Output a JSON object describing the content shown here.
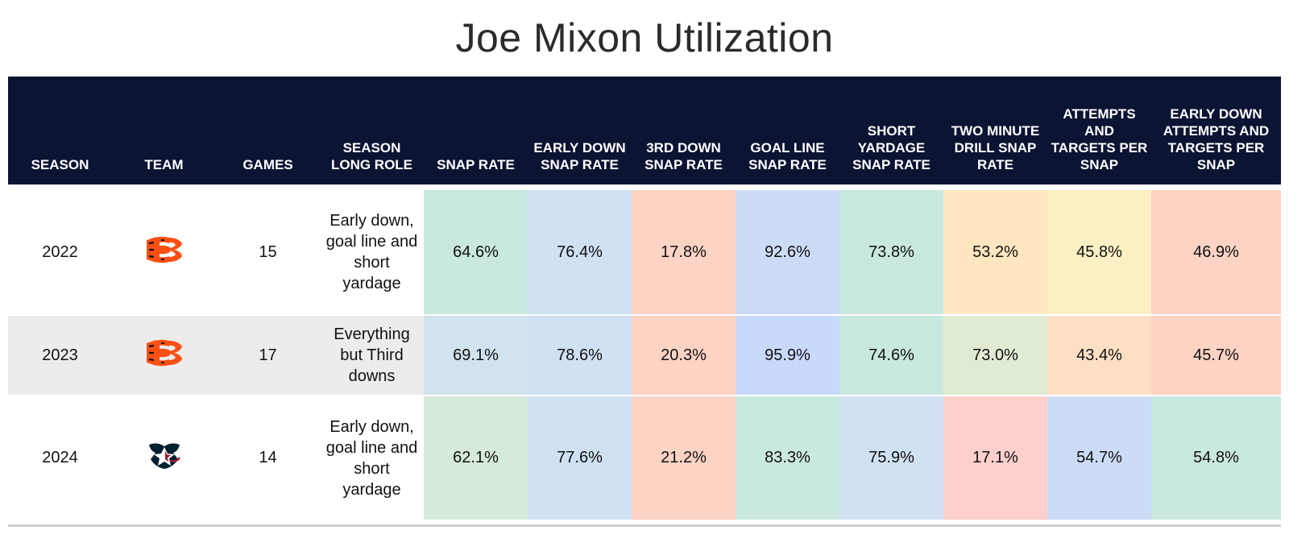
{
  "title": "Joe Mixon Utilization",
  "chart_data": {
    "type": "table",
    "title": "Joe Mixon Utilization",
    "columns": [
      "SEASON",
      "TEAM",
      "GAMES",
      "SEASON LONG ROLE",
      "SNAP RATE",
      "EARLY DOWN SNAP RATE",
      "3RD DOWN SNAP RATE",
      "GOAL LINE SNAP RATE",
      "SHORT YARDAGE SNAP RATE",
      "TWO MINUTE DRILL SNAP RATE",
      "ATTEMPTS AND TARGETS PER SNAP",
      "EARLY DOWN ATTEMPTS AND TARGETS PER SNAP"
    ],
    "rows": [
      {
        "season": "2022",
        "team_logo": "bengals-logo-icon",
        "games": "15",
        "role": "Early down, goal line and short yardage",
        "snap_rate": "64.6%",
        "early_down_snap_rate": "76.4%",
        "third_down_snap_rate": "17.8%",
        "goal_line_snap_rate": "92.6%",
        "short_yardage_snap_rate": "73.8%",
        "two_minute_drill_snap_rate": "53.2%",
        "attempts_targets_per_snap": "45.8%",
        "early_down_attempts_targets_per_snap": "46.9%"
      },
      {
        "season": "2023",
        "team_logo": "bengals-logo-icon",
        "games": "17",
        "role": "Everything but Third downs",
        "snap_rate": "69.1%",
        "early_down_snap_rate": "78.6%",
        "third_down_snap_rate": "20.3%",
        "goal_line_snap_rate": "95.9%",
        "short_yardage_snap_rate": "74.6%",
        "two_minute_drill_snap_rate": "73.0%",
        "attempts_targets_per_snap": "43.4%",
        "early_down_attempts_targets_per_snap": "45.7%"
      },
      {
        "season": "2024",
        "team_logo": "texans-logo-icon",
        "games": "14",
        "role": "Early down, goal line and short yardage",
        "snap_rate": "62.1%",
        "early_down_snap_rate": "77.6%",
        "third_down_snap_rate": "21.2%",
        "goal_line_snap_rate": "83.3%",
        "short_yardage_snap_rate": "75.9%",
        "two_minute_drill_snap_rate": "17.1%",
        "attempts_targets_per_snap": "54.7%",
        "early_down_attempts_targets_per_snap": "54.8%"
      }
    ],
    "cell_colors": [
      [
        "#c9e8df",
        "#cfe1f2",
        "#fdd3c4",
        "#ccdcf7",
        "#c9e8df",
        "#fde6c0",
        "#fbefc3",
        "#fdd3c4"
      ],
      [
        "#d0e3ee",
        "#cfe1f2",
        "#fdd3c4",
        "#c8d9fb",
        "#c9e8df",
        "#e0ebd3",
        "#fde0c4",
        "#fdd3c4"
      ],
      [
        "#d6eada",
        "#cfe1f2",
        "#fdd3c4",
        "#c9e8df",
        "#cfe1f2",
        "#fdd0cc",
        "#ccdcf7",
        "#c9e8df"
      ]
    ]
  },
  "colors": {
    "header_bg": "#0c1434",
    "bengals_orange": "#fb4f14",
    "texans_navy": "#03202f",
    "texans_red": "#a71930"
  }
}
